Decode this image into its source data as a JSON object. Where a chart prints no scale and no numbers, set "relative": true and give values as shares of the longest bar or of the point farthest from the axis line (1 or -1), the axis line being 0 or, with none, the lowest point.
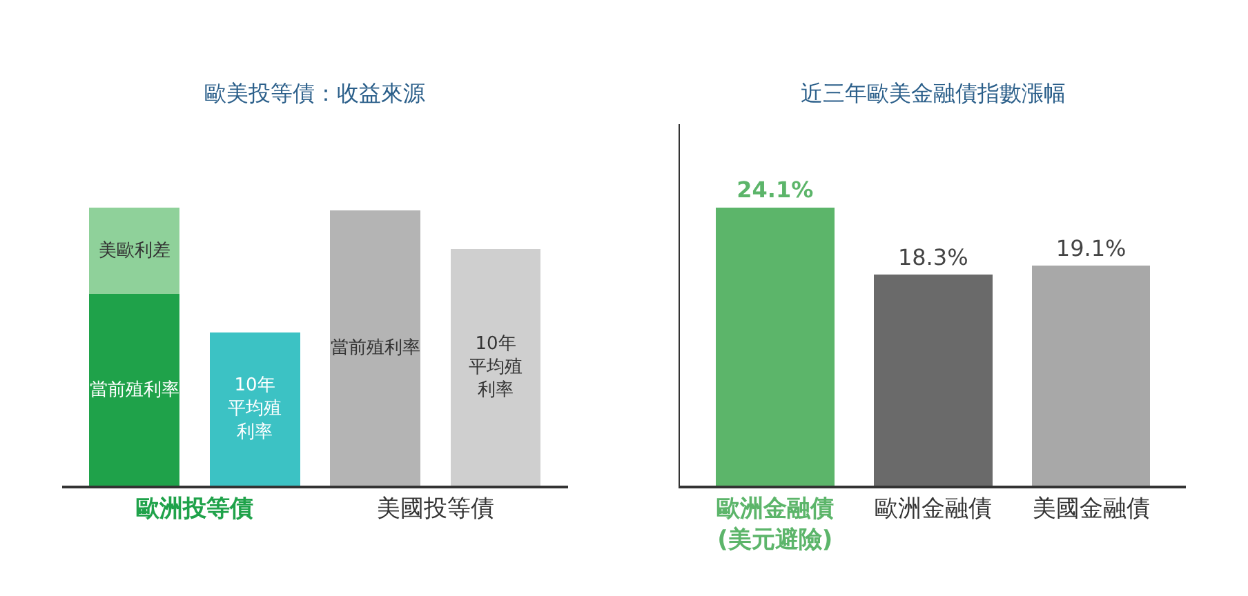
{
  "chart_data": [
    {
      "type": "bar",
      "title": "歐美投等債：收益來源",
      "categories": [
        "歐洲投等債",
        null,
        "美國投等債",
        null
      ],
      "relative": true,
      "stacked": true,
      "legend": false,
      "tick_labels": "x",
      "series": [
        {
          "name": "當前殖利率",
          "colors": [
            "#1fa24a",
            null,
            "#b4b4b4",
            null
          ],
          "values": [
            0.69,
            null,
            0.99,
            null
          ]
        },
        {
          "name": "美歐利差",
          "colors": [
            "#8fd19a",
            null,
            null,
            null
          ],
          "values": [
            0.31,
            null,
            null,
            null
          ]
        },
        {
          "name": "10年平均殖利率",
          "colors": [
            null,
            "#3cc2c4",
            null,
            "#cfcfcf"
          ],
          "values": [
            null,
            0.55,
            null,
            0.85
          ]
        }
      ]
    },
    {
      "type": "bar",
      "title": "近三年歐美金融債指數漲幅",
      "categories": [
        "歐洲金融債\n(美元避險)",
        "歐洲金融債",
        "美國金融債"
      ],
      "values": [
        24.1,
        18.3,
        19.1
      ],
      "colors": [
        "#5cb56a",
        "#6a6a6a",
        "#a8a8a8"
      ],
      "value_labels": [
        "24.1%",
        "18.3%",
        "19.1%"
      ],
      "tick_labels": "x",
      "legend": false
    }
  ]
}
